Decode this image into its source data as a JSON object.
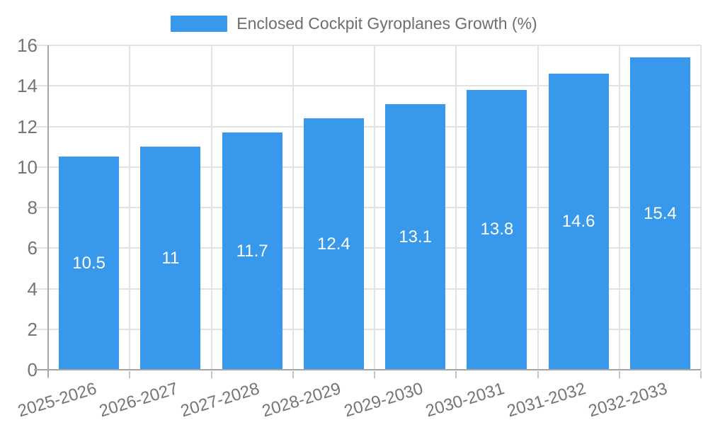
{
  "legend": {
    "label": "Enclosed Cockpit Gyroplanes Growth (%)"
  },
  "colors": {
    "bar": "#3899ec",
    "grid": "#e2e2e2",
    "axis": "#a6a6a6",
    "tick_text": "#757575",
    "legend_text": "#6e6e6e",
    "data_label": "#ffffff",
    "background": "#ffffff"
  },
  "chart_data": {
    "type": "bar",
    "title": "Enclosed Cockpit Gyroplanes Growth (%)",
    "categories": [
      "2025-2026",
      "2026-2027",
      "2027-2028",
      "2028-2029",
      "2029-2030",
      "2030-2031",
      "2031-2032",
      "2032-2033"
    ],
    "series": [
      {
        "name": "Enclosed Cockpit Gyroplanes Growth (%)",
        "values": [
          10.5,
          11,
          11.7,
          12.4,
          13.1,
          13.8,
          14.6,
          15.4
        ]
      }
    ],
    "xlabel": "",
    "ylabel": "",
    "ylim": [
      0,
      16
    ],
    "yticks": [
      0,
      2,
      4,
      6,
      8,
      10,
      12,
      14,
      16
    ],
    "grid": true,
    "legend_position": "top",
    "bar_value_labels": true,
    "x_label_rotation_deg": -17
  }
}
